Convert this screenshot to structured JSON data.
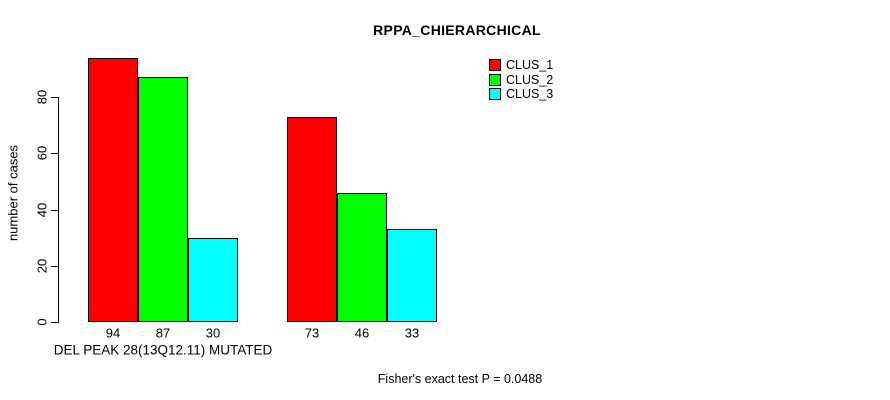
{
  "chart_data": {
    "type": "bar",
    "title": "RPPA_CHIERARCHICAL",
    "ylabel": "number of cases",
    "xlabel": "DEL PEAK 28(13Q12.11) MUTATED",
    "categories": [
      "DEL PEAK 28(13Q12.11) MUTATED",
      ""
    ],
    "series": [
      {
        "name": "CLUS_1",
        "color": "#FF0000",
        "values": [
          94,
          73
        ]
      },
      {
        "name": "CLUS_2",
        "color": "#00FF00",
        "values": [
          87,
          46
        ]
      },
      {
        "name": "CLUS_3",
        "color": "#00FFFF",
        "values": [
          30,
          33
        ]
      }
    ],
    "bar_labels": [
      [
        94,
        87,
        30
      ],
      [
        73,
        46,
        33
      ]
    ],
    "yticks": [
      0,
      20,
      40,
      60,
      80
    ],
    "ylim": [
      0,
      100
    ],
    "grid": false,
    "legend_position": "top-right",
    "bar_border_color": "#000000",
    "annotation": "Fisher's exact test P = 0.0488"
  }
}
